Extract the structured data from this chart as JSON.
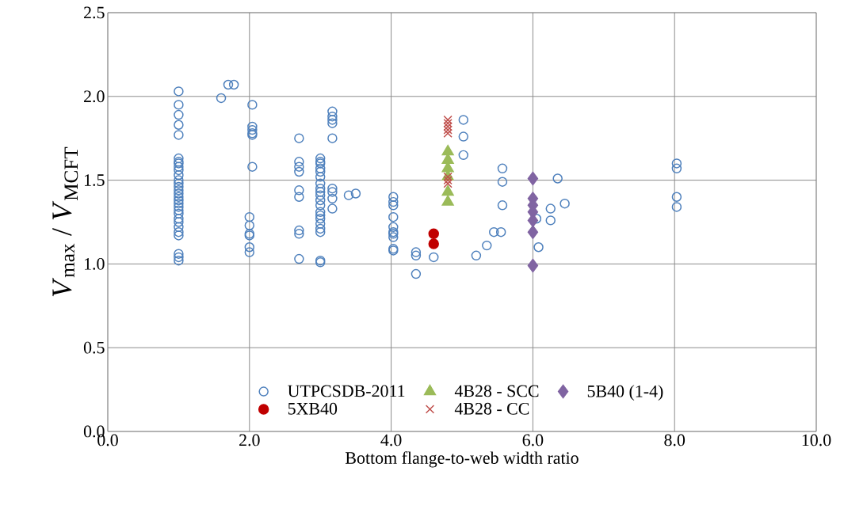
{
  "chart_data": {
    "type": "scatter",
    "xlabel": "Bottom flange-to-web width ratio",
    "ylabel": "*V*$_{max}$ / *V*$_{MCFT}$",
    "xlim": [
      0,
      10
    ],
    "ylim": [
      0,
      2.5
    ],
    "xticks": [
      {
        "value": 0,
        "label": "0.0"
      },
      {
        "value": 2,
        "label": "2.0"
      },
      {
        "value": 4,
        "label": "4.0"
      },
      {
        "value": 6,
        "label": "6.0"
      },
      {
        "value": 8,
        "label": "8.0"
      },
      {
        "value": 10,
        "label": "10.0"
      }
    ],
    "yticks": [
      {
        "value": 0,
        "label": "0.0"
      },
      {
        "value": 0.5,
        "label": "0.5"
      },
      {
        "value": 1,
        "label": "1.0"
      },
      {
        "value": 1.5,
        "label": "1.5"
      },
      {
        "value": 2,
        "label": "2.0"
      },
      {
        "value": 2.5,
        "label": "2.5"
      }
    ],
    "grid": true,
    "legend": "bottom",
    "series": [
      {
        "name": "UTPCSDB-2011",
        "color": "#4f81bd",
        "marker": "circle",
        "x": [
          1,
          1,
          1,
          1,
          1,
          1,
          1,
          1,
          1,
          1,
          1,
          1,
          1,
          1,
          1,
          1,
          1,
          1,
          1,
          1,
          1,
          1,
          1,
          1,
          1,
          1,
          1,
          1,
          1,
          1,
          1.6,
          1.7,
          1.78,
          2,
          2,
          2,
          2,
          2,
          2,
          2.04,
          2.04,
          2.04,
          2.04,
          2.04,
          2.04,
          2.7,
          2.7,
          2.7,
          2.7,
          2.7,
          2.7,
          2.7,
          2.7,
          2.7,
          3,
          3,
          3,
          3,
          3,
          3,
          3,
          3,
          3,
          3,
          3,
          3,
          3,
          3,
          3,
          3,
          3,
          3,
          3,
          3,
          3.17,
          3.17,
          3.17,
          3.17,
          3.17,
          3.17,
          3.17,
          3.17,
          3.17,
          3.4,
          3.5,
          4.03,
          4.03,
          4.03,
          4.03,
          4.03,
          4.03,
          4.03,
          4.03,
          4.03,
          4.03,
          4.35,
          4.35,
          4.35,
          4.6,
          5.02,
          5.02,
          5.02,
          5.2,
          5.35,
          5.45,
          5.55,
          5.57,
          5.57,
          5.57,
          6.05,
          6.08,
          6.25,
          6.25,
          6.35,
          6.45,
          8.03,
          8.03,
          8.03,
          8.03
        ],
        "values": [
          2.03,
          1.95,
          1.89,
          1.83,
          1.77,
          1.63,
          1.61,
          1.6,
          1.58,
          1.56,
          1.53,
          1.5,
          1.48,
          1.46,
          1.44,
          1.42,
          1.4,
          1.38,
          1.36,
          1.34,
          1.32,
          1.3,
          1.27,
          1.25,
          1.22,
          1.19,
          1.17,
          1.06,
          1.04,
          1.02,
          1.99,
          2.07,
          2.07,
          1.28,
          1.23,
          1.18,
          1.17,
          1.1,
          1.07,
          1.95,
          1.82,
          1.8,
          1.78,
          1.77,
          1.58,
          1.75,
          1.61,
          1.58,
          1.55,
          1.44,
          1.4,
          1.2,
          1.18,
          1.03,
          1.63,
          1.61,
          1.6,
          1.57,
          1.55,
          1.52,
          1.48,
          1.45,
          1.43,
          1.41,
          1.38,
          1.35,
          1.31,
          1.29,
          1.27,
          1.24,
          1.21,
          1.19,
          1.02,
          1.01,
          1.91,
          1.88,
          1.86,
          1.84,
          1.75,
          1.45,
          1.43,
          1.39,
          1.33,
          1.41,
          1.42,
          1.4,
          1.37,
          1.35,
          1.28,
          1.22,
          1.19,
          1.18,
          1.16,
          1.09,
          1.08,
          1.07,
          1.05,
          0.94,
          1.04,
          1.86,
          1.76,
          1.65,
          1.05,
          1.11,
          1.19,
          1.19,
          1.57,
          1.49,
          1.35,
          1.27,
          1.1,
          1.26,
          1.33,
          1.51,
          1.36,
          1.6,
          1.57,
          1.4,
          1.34
        ]
      },
      {
        "name": "4B28 - CC",
        "color": "#c0504d",
        "marker": "cross",
        "x": [
          4.8,
          4.8,
          4.8,
          4.8,
          4.8,
          4.8,
          4.8,
          4.8
        ],
        "values": [
          1.86,
          1.84,
          1.82,
          1.8,
          1.78,
          1.52,
          1.5,
          1.48
        ]
      },
      {
        "name": "4B28 - SCC",
        "color": "#9bbb59",
        "marker": "triangle",
        "x": [
          4.8,
          4.8,
          4.8,
          4.8,
          4.8,
          4.8
        ],
        "values": [
          1.67,
          1.62,
          1.57,
          1.52,
          1.43,
          1.37
        ]
      },
      {
        "name": "5B40 (1-4)",
        "color": "#8064a2",
        "marker": "diamond",
        "x": [
          6,
          6,
          6,
          6,
          6,
          6,
          6
        ],
        "values": [
          1.51,
          1.39,
          1.35,
          1.31,
          1.26,
          1.19,
          0.99
        ]
      },
      {
        "name": "5XB40",
        "color": "#c00000",
        "marker": "circle",
        "x": [
          4.6,
          4.6
        ],
        "values": [
          1.18,
          1.12
        ]
      }
    ]
  }
}
